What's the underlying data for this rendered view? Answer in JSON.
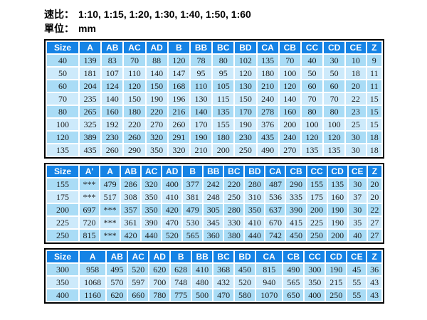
{
  "page": {
    "speed_ratio_label": "速比：",
    "speed_ratio_value": "1:10, 1:15, 1:20, 1:30, 1:40, 1:50, 1:60",
    "unit_label": "單位：",
    "unit_value": "mm"
  },
  "colors": {
    "header_bg": "#1583E5",
    "row_dark": "#A9DCF6",
    "row_light": "#CDEAFB",
    "table_border": "#000000",
    "header_text": "#FFFFFF",
    "cell_text": "#1A1A1A"
  },
  "tables": [
    {
      "name": "sizes-40-135",
      "headers": [
        "Size",
        "A",
        "AB",
        "AC",
        "AD",
        "B",
        "BB",
        "BC",
        "BD",
        "CA",
        "CB",
        "CC",
        "CD",
        "CE",
        "Z"
      ],
      "rows": [
        [
          "40",
          "139",
          "83",
          "70",
          "88",
          "120",
          "78",
          "80",
          "102",
          "135",
          "70",
          "40",
          "30",
          "10",
          "9"
        ],
        [
          "50",
          "181",
          "107",
          "110",
          "140",
          "147",
          "95",
          "95",
          "120",
          "180",
          "100",
          "50",
          "50",
          "18",
          "11"
        ],
        [
          "60",
          "204",
          "124",
          "120",
          "150",
          "168",
          "110",
          "105",
          "130",
          "210",
          "120",
          "60",
          "60",
          "20",
          "11"
        ],
        [
          "70",
          "235",
          "140",
          "150",
          "190",
          "196",
          "130",
          "115",
          "150",
          "240",
          "140",
          "70",
          "70",
          "22",
          "15"
        ],
        [
          "80",
          "265",
          "160",
          "180",
          "220",
          "216",
          "140",
          "135",
          "170",
          "278",
          "160",
          "80",
          "80",
          "23",
          "15"
        ],
        [
          "100",
          "325",
          "192",
          "220",
          "270",
          "260",
          "170",
          "155",
          "190",
          "376",
          "200",
          "100",
          "100",
          "25",
          "15"
        ],
        [
          "120",
          "389",
          "230",
          "260",
          "320",
          "291",
          "190",
          "180",
          "230",
          "435",
          "240",
          "120",
          "120",
          "30",
          "18"
        ],
        [
          "135",
          "435",
          "260",
          "290",
          "350",
          "320",
          "210",
          "200",
          "250",
          "490",
          "270",
          "135",
          "135",
          "30",
          "18"
        ]
      ]
    },
    {
      "name": "sizes-155-250",
      "headers": [
        "Size",
        "A'",
        "A",
        "AB",
        "AC",
        "AD",
        "B",
        "BB",
        "BC",
        "BD",
        "CA",
        "CB",
        "CC",
        "CD",
        "CE",
        "Z"
      ],
      "rows": [
        [
          "155",
          "***",
          "479",
          "286",
          "320",
          "400",
          "377",
          "242",
          "220",
          "280",
          "487",
          "290",
          "155",
          "135",
          "30",
          "20"
        ],
        [
          "175",
          "***",
          "517",
          "308",
          "350",
          "410",
          "381",
          "248",
          "250",
          "310",
          "536",
          "335",
          "175",
          "160",
          "37",
          "20"
        ],
        [
          "200",
          "697",
          "***",
          "357",
          "350",
          "420",
          "479",
          "305",
          "280",
          "350",
          "637",
          "390",
          "200",
          "190",
          "30",
          "22"
        ],
        [
          "225",
          "720",
          "***",
          "361",
          "390",
          "470",
          "530",
          "345",
          "330",
          "410",
          "670",
          "415",
          "225",
          "190",
          "35",
          "27"
        ],
        [
          "250",
          "815",
          "***",
          "420",
          "440",
          "520",
          "565",
          "360",
          "380",
          "440",
          "742",
          "450",
          "250",
          "200",
          "40",
          "27"
        ]
      ]
    },
    {
      "name": "sizes-300-400",
      "headers": [
        "Size",
        "A",
        "AB",
        "AC",
        "AD",
        "B",
        "BB",
        "BC",
        "BD",
        "CA",
        "CB",
        "CC",
        "CD",
        "CE",
        "Z"
      ],
      "rows": [
        [
          "300",
          "958",
          "495",
          "520",
          "620",
          "628",
          "410",
          "368",
          "450",
          "815",
          "490",
          "300",
          "190",
          "45",
          "36"
        ],
        [
          "350",
          "1068",
          "570",
          "597",
          "700",
          "748",
          "480",
          "432",
          "520",
          "940",
          "565",
          "350",
          "215",
          "55",
          "43"
        ],
        [
          "400",
          "1160",
          "620",
          "660",
          "780",
          "775",
          "500",
          "470",
          "580",
          "1070",
          "650",
          "400",
          "250",
          "55",
          "43"
        ]
      ]
    }
  ]
}
